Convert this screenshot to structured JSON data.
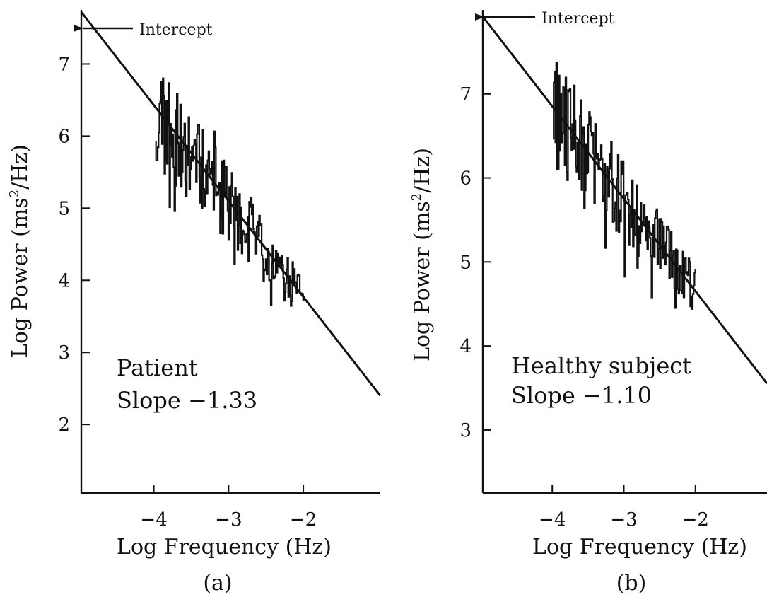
{
  "chart_data": [
    {
      "type": "line",
      "panel_label": "(a)",
      "xlabel": "Log Frequency (Hz)",
      "ylabel_main": "Log Power (ms",
      "ylabel_sup": "2",
      "ylabel_end": "/Hz)",
      "xlim": [
        -4.97,
        -0.97
      ],
      "ylim": [
        1.05,
        7.75
      ],
      "xticks": [
        -4,
        -3,
        -2
      ],
      "xtick_labels": [
        "−4",
        "−3",
        "−2"
      ],
      "yticks": [
        2,
        3,
        4,
        5,
        6,
        7
      ],
      "ytick_labels": [
        "2",
        "3",
        "4",
        "5",
        "6",
        "7"
      ],
      "annotation_line1": "Patient",
      "annotation_line2": "Slope −1.33",
      "intercept_label": "Intercept",
      "fit": {
        "slope": -1.33,
        "x_start": -4.97,
        "y_start": 7.72,
        "x_end": -0.97
      },
      "spectrum": {
        "x_start": -3.97,
        "x_end": -1.98,
        "n": 180,
        "seed": 11,
        "noise_low": 0.75,
        "noise_high": 0.32,
        "offset": 0.0
      },
      "grid": false
    },
    {
      "type": "line",
      "panel_label": "(b)",
      "xlabel": "Log Frequency (Hz)",
      "ylabel_main": "Log Power (ms",
      "ylabel_sup": "2",
      "ylabel_end": "/Hz)",
      "xlim": [
        -4.97,
        -1.0
      ],
      "ylim": [
        2.25,
        8.0
      ],
      "xticks": [
        -4,
        -3,
        -2
      ],
      "xtick_labels": [
        "−4",
        "−3",
        "−2"
      ],
      "yticks": [
        3,
        4,
        5,
        6,
        7
      ],
      "ytick_labels": [
        "3",
        "4",
        "5",
        "6",
        "7"
      ],
      "annotation_line1": "Healthy subject",
      "annotation_line2": "Slope −1.10",
      "intercept_label": "Intercept",
      "fit": {
        "slope": -1.1,
        "x_start": -4.97,
        "y_start": 7.92,
        "x_end": -1.0
      },
      "spectrum": {
        "x_start": -3.98,
        "x_end": -1.99,
        "n": 170,
        "seed": 29,
        "noise_low": 0.7,
        "noise_high": 0.3,
        "offset": 0.05
      },
      "grid": false
    }
  ]
}
